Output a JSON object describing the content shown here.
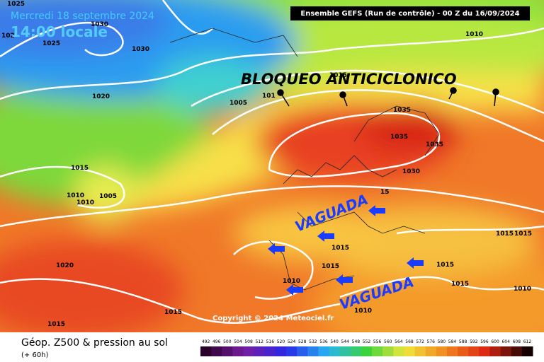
{
  "header": {
    "date": "Mercredi 18 septembre 2024",
    "time": "14:00 locale",
    "run": "Ensemble GEFS  (Run de contrôle)  - 00 Z du 16/09/2024"
  },
  "annotations": {
    "blocking": "BLOQUEO ANTICICLONICO",
    "trough_1": "VAGUADA",
    "trough_2": "VAGUADA",
    "copyright": "Copyright © 2024 Meteociel.fr"
  },
  "isobar_labels": [
    "1025",
    "102",
    "1030",
    "1025",
    "1030",
    "1020",
    "1005",
    "101",
    "1015",
    "1035",
    "1035",
    "1035",
    "1030",
    "1010",
    "1015",
    "1010",
    "1010",
    "1005",
    "15",
    "1015",
    "1015",
    "1015",
    "1015",
    "1015",
    "1015",
    "1010",
    "1010",
    "1010",
    "1020",
    "1015",
    "1015"
  ],
  "footer": {
    "title": "Géop. Z500 & pression au sol",
    "lead": "(+ 60h)"
  },
  "scale": [
    492,
    496,
    500,
    504,
    508,
    512,
    516,
    520,
    524,
    528,
    532,
    536,
    540,
    544,
    548,
    552,
    556,
    560,
    564,
    568,
    572,
    576,
    580,
    584,
    588,
    592,
    596,
    600,
    604,
    608,
    612
  ]
}
